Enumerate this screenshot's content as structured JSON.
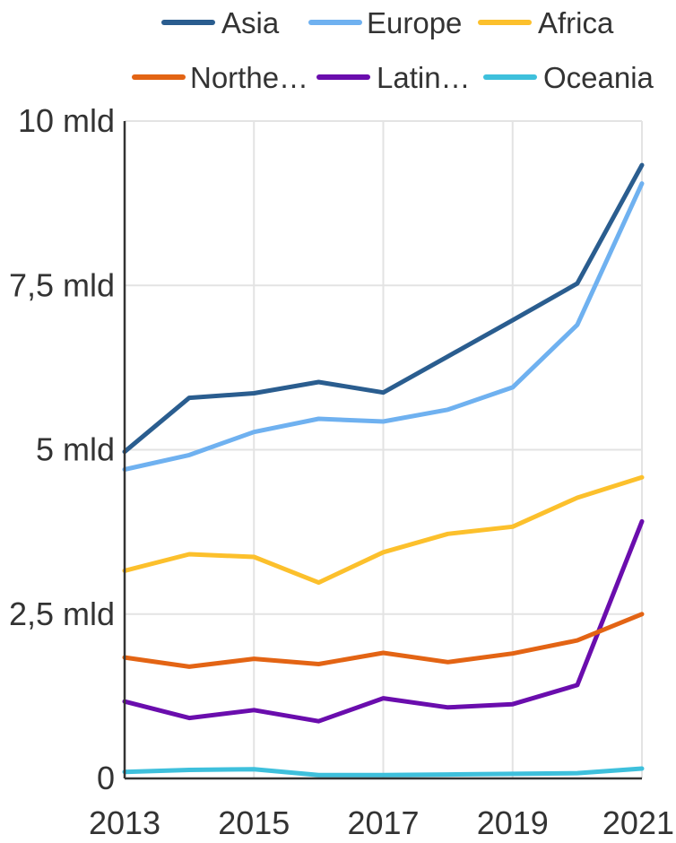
{
  "chart_data": {
    "type": "line",
    "title": "",
    "xlabel": "",
    "ylabel": "",
    "x": [
      2013,
      2014,
      2015,
      2016,
      2017,
      2018,
      2019,
      2020,
      2021
    ],
    "x_ticks": [
      2013,
      2015,
      2017,
      2019,
      2021
    ],
    "x_tick_labels": [
      "2013",
      "2015",
      "2017",
      "2019",
      "2021"
    ],
    "xlim": [
      2013,
      2021
    ],
    "ylim": [
      0,
      10
    ],
    "y_ticks": [
      0,
      2.5,
      5,
      7.5,
      10
    ],
    "y_tick_labels": [
      "0",
      "2,5 mld",
      "5 mld",
      "7,5 mld",
      "10 mld"
    ],
    "y_unit": "mld",
    "grid": true,
    "legend_position": "top",
    "series": [
      {
        "name": "Asia",
        "legend_label": "Asia",
        "color": "#2a5d8f",
        "values": [
          4.97,
          5.79,
          5.86,
          6.03,
          5.87,
          6.42,
          6.97,
          7.53,
          9.33
        ]
      },
      {
        "name": "Europe",
        "legend_label": "Europe",
        "color": "#6fb1f0",
        "values": [
          4.7,
          4.92,
          5.27,
          5.47,
          5.43,
          5.61,
          5.95,
          6.9,
          9.05
        ]
      },
      {
        "name": "Africa",
        "legend_label": "Africa",
        "color": "#fcc02c",
        "values": [
          3.16,
          3.41,
          3.37,
          2.98,
          3.44,
          3.72,
          3.83,
          4.27,
          4.58
        ]
      },
      {
        "name": "Northe…",
        "legend_label": "Northe…",
        "color": "#e36414",
        "values": [
          1.84,
          1.7,
          1.82,
          1.74,
          1.91,
          1.77,
          1.9,
          2.1,
          2.5
        ]
      },
      {
        "name": "Latin…",
        "legend_label": "Latin…",
        "color": "#6a0dad",
        "values": [
          1.17,
          0.92,
          1.04,
          0.87,
          1.22,
          1.08,
          1.13,
          1.42,
          3.91
        ]
      },
      {
        "name": "Oceania",
        "legend_label": "Oceania",
        "color": "#3ec0dc",
        "values": [
          0.1,
          0.13,
          0.14,
          0.05,
          0.05,
          0.06,
          0.07,
          0.08,
          0.15
        ]
      }
    ]
  }
}
